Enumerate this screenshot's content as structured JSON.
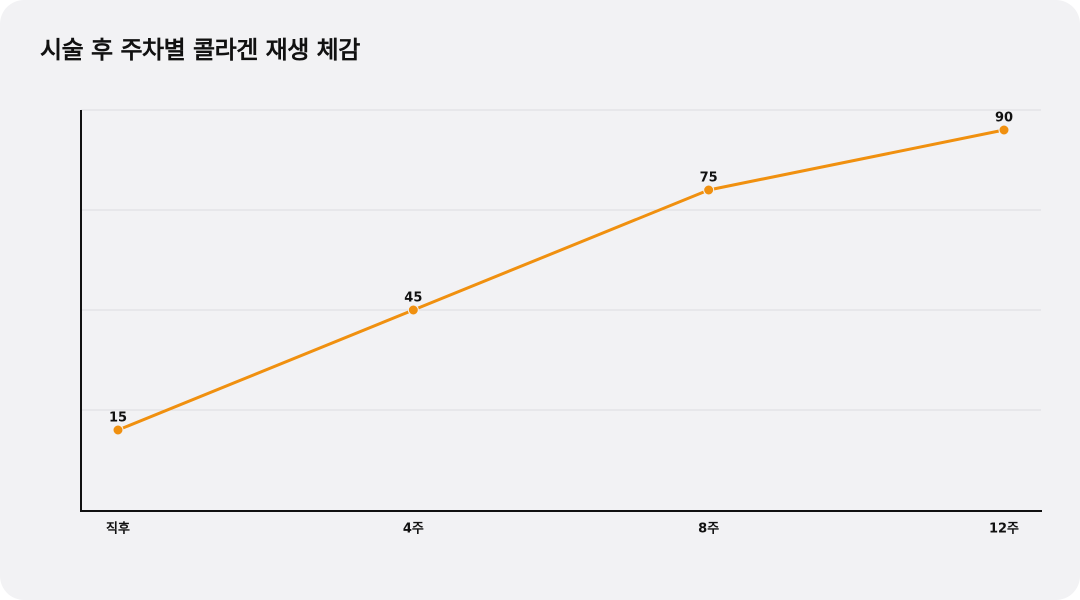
{
  "chart_data": {
    "type": "line",
    "title": "시술 후 주차별 콜라겐 재생 체감",
    "categories": [
      "직후",
      "4주",
      "8주",
      "12주"
    ],
    "series": [
      {
        "name": "콜라겐 재생 체감",
        "color": "#f0900f",
        "values": [
          15,
          45,
          75,
          90
        ]
      }
    ],
    "ylim": [
      -5,
      95
    ],
    "grid": true
  }
}
